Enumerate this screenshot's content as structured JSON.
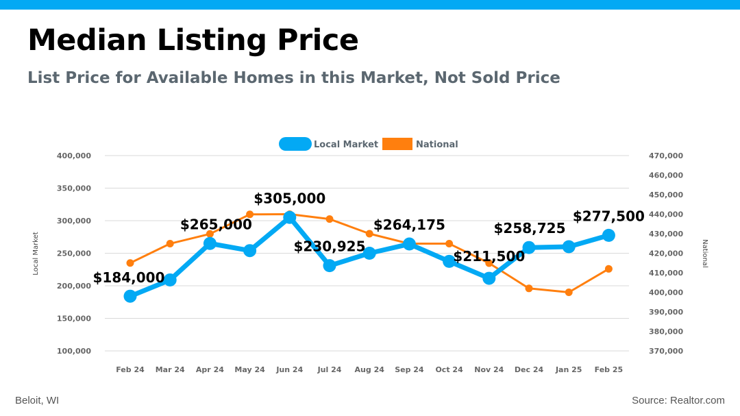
{
  "page": {
    "title": "Median Listing Price",
    "subtitle": "List Price for Available Homes in this Market, Not Sold Price",
    "location": "Beloit, WI",
    "source": "Source: Realtor.com"
  },
  "colors": {
    "accent_bar": "#03a9f4",
    "local": "#03a9f4",
    "national": "#ff7f0e",
    "subtitle": "#5b6770",
    "grid": "#d9d9d9",
    "tick": "#666666"
  },
  "chart_data": {
    "type": "line",
    "categories": [
      "Feb 24",
      "Mar 24",
      "Apr 24",
      "May 24",
      "Jun 24",
      "Jul 24",
      "Aug 24",
      "Sep 24",
      "Oct 24",
      "Nov 24",
      "Dec 24",
      "Jan 25",
      "Feb 25"
    ],
    "series": [
      {
        "name": "Local Market",
        "axis": "left",
        "values": [
          184000,
          209000,
          265000,
          254000,
          305000,
          230925,
          250000,
          264175,
          237500,
          211500,
          258725,
          260000,
          277500
        ]
      },
      {
        "name": "National",
        "axis": "right",
        "values": [
          415000,
          424900,
          429900,
          439900,
          440000,
          437500,
          430000,
          424900,
          424900,
          414900,
          402000,
          400000,
          412000
        ]
      }
    ],
    "data_labels": [
      {
        "index": 0,
        "text": "$184,000"
      },
      {
        "index": 2,
        "text": "$265,000"
      },
      {
        "index": 4,
        "text": "$305,000"
      },
      {
        "index": 5,
        "text": "$230,925"
      },
      {
        "index": 7,
        "text": "$264,175"
      },
      {
        "index": 9,
        "text": "$211,500"
      },
      {
        "index": 10,
        "text": "$258,725"
      },
      {
        "index": 12,
        "text": "$277,500"
      }
    ],
    "ylabel": "Local Market",
    "y2label": "National",
    "ylim": [
      100000,
      400000
    ],
    "y2lim": [
      370000,
      470000
    ],
    "yticks": [
      100000,
      150000,
      200000,
      250000,
      300000,
      350000,
      400000
    ],
    "y2ticks": [
      370000,
      380000,
      390000,
      400000,
      410000,
      420000,
      430000,
      440000,
      450000,
      460000,
      470000
    ],
    "grid": true,
    "legend": "top-center"
  }
}
